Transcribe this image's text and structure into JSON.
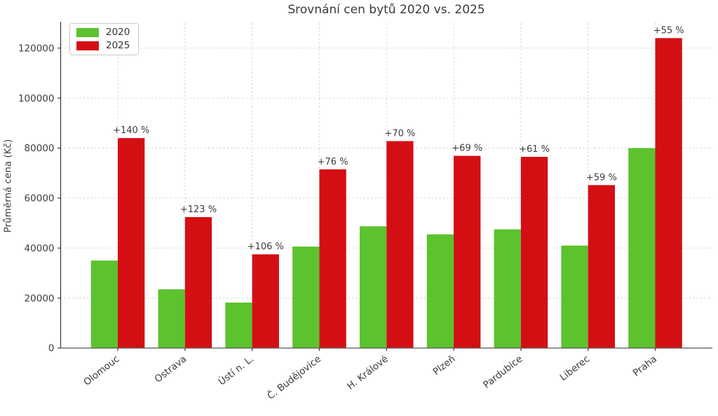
{
  "chart_data": {
    "type": "bar",
    "title": "Srovnání cen bytů 2020 vs. 2025",
    "xlabel": "",
    "ylabel": "Průměrná cena (Kč)",
    "categories": [
      "Olomouc",
      "Ostrava",
      "Ústí n. L.",
      "Č. Budějovice",
      "H. Králové",
      "Plzeň",
      "Pardubice",
      "Liberec",
      "Praha"
    ],
    "series": [
      {
        "name": "2020",
        "color": "#5cc22e",
        "values": [
          35000,
          23500,
          18200,
          40600,
          48700,
          45500,
          47500,
          41000,
          80000
        ]
      },
      {
        "name": "2025",
        "color": "#d40f14",
        "values": [
          84000,
          52400,
          37500,
          71500,
          82800,
          76900,
          76500,
          65200,
          124000
        ]
      }
    ],
    "bar_labels": [
      "+140 %",
      "+123 %",
      "+106 %",
      "+76 %",
      "+70 %",
      "+69 %",
      "+61 %",
      "+59 %",
      "+55 %"
    ],
    "yticks": [
      0,
      20000,
      40000,
      60000,
      80000,
      100000,
      120000
    ],
    "ytick_labels": [
      "0",
      "20000",
      "40000",
      "60000",
      "80000",
      "100000",
      "120000"
    ],
    "ylim": [
      0,
      130000
    ],
    "grid": true,
    "grid_style": "dashed",
    "legend_position": "upper left",
    "colors": {
      "grid": "#c7c7c7",
      "axis": "#333333",
      "text": "#3c3c3c",
      "background": "#ffffff"
    }
  }
}
